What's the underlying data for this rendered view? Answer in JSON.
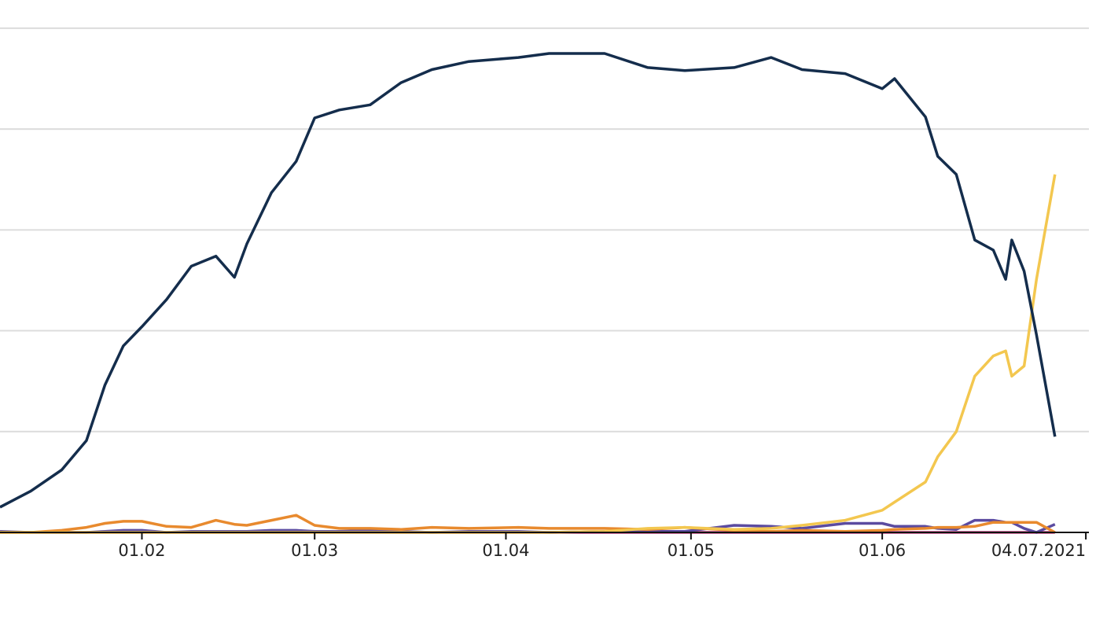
{
  "chart_data": {
    "type": "line",
    "x": [
      9,
      14,
      19,
      23,
      26,
      29,
      32,
      36,
      40,
      44,
      47,
      49,
      53,
      57,
      60,
      64,
      69,
      74,
      79,
      85,
      93,
      98,
      107,
      114,
      120,
      128,
      134,
      139,
      146,
      152,
      154,
      159,
      161,
      164,
      167,
      170,
      172,
      173,
      175,
      177,
      180
    ],
    "xlim": [
      9,
      185.5
    ],
    "xticks": [
      {
        "value": 32,
        "label": "01.02"
      },
      {
        "value": 60,
        "label": "01.03"
      },
      {
        "value": 91,
        "label": "01.04"
      },
      {
        "value": 121,
        "label": "01.05"
      },
      {
        "value": 152,
        "label": "01.06"
      },
      {
        "value": 185,
        "label": "04.07.2021"
      }
    ],
    "ylim": [
      0,
      5.28
    ],
    "yticks": [
      0,
      1,
      2,
      3,
      4,
      5
    ],
    "grid": true,
    "series": [
      {
        "color": "#c2417f",
        "values": [
          0,
          0,
          0,
          0,
          0,
          0,
          0,
          0,
          0,
          0,
          0,
          0,
          0,
          0,
          0,
          0,
          0,
          0,
          0,
          0,
          0,
          0,
          0,
          0,
          0,
          0,
          0,
          0,
          0,
          0,
          0,
          0,
          0,
          0,
          0,
          0,
          0,
          0,
          0,
          0,
          0
        ]
      },
      {
        "color": "#5b4ba0",
        "values": [
          0.01,
          0,
          0,
          0,
          0.01,
          0.02,
          0.02,
          0,
          0.01,
          0.01,
          0.01,
          0.01,
          0.02,
          0.02,
          0.01,
          0.01,
          0.02,
          0.01,
          0,
          0.01,
          0.01,
          0,
          0.01,
          0.01,
          0.01,
          0.07,
          0.06,
          0.04,
          0.09,
          0.09,
          0.06,
          0.06,
          0.04,
          0.03,
          0.12,
          0.12,
          0.1,
          0.1,
          0.04,
          0,
          0.08
        ]
      },
      {
        "color": "#e88a2e",
        "values": [
          0,
          0,
          0.02,
          0.05,
          0.09,
          0.11,
          0.11,
          0.06,
          0.05,
          0.12,
          0.08,
          0.07,
          0.12,
          0.17,
          0.07,
          0.04,
          0.04,
          0.03,
          0.05,
          0.04,
          0.05,
          0.04,
          0.04,
          0.03,
          0.05,
          0.02,
          0.01,
          0.02,
          0.01,
          0.02,
          0.03,
          0.04,
          0.05,
          0.05,
          0.06,
          0.1,
          0.1,
          0.1,
          0.1,
          0.1,
          0
        ]
      },
      {
        "color": "#f3c74f",
        "values": [
          0,
          0,
          0,
          0,
          0,
          0,
          0,
          0,
          0,
          0,
          0,
          0,
          0,
          0,
          0,
          0,
          0,
          0,
          0,
          0,
          0,
          0,
          0.01,
          0.04,
          0.05,
          0.03,
          0.04,
          0.07,
          0.12,
          0.22,
          0.3,
          0.5,
          0.75,
          1.0,
          1.55,
          1.75,
          1.8,
          1.55,
          1.65,
          2.51,
          3.55
        ]
      },
      {
        "color": "#142d4c",
        "values": [
          0.25,
          0.41,
          0.62,
          0.91,
          1.46,
          1.85,
          2.04,
          2.31,
          2.64,
          2.74,
          2.53,
          2.86,
          3.37,
          3.68,
          4.11,
          4.19,
          4.24,
          4.46,
          4.59,
          4.67,
          4.71,
          4.75,
          4.75,
          4.61,
          4.58,
          4.61,
          4.71,
          4.59,
          4.55,
          4.4,
          4.5,
          4.12,
          3.73,
          3.55,
          2.9,
          2.8,
          2.51,
          2.9,
          2.59,
          1.96,
          0.95
        ]
      }
    ]
  }
}
